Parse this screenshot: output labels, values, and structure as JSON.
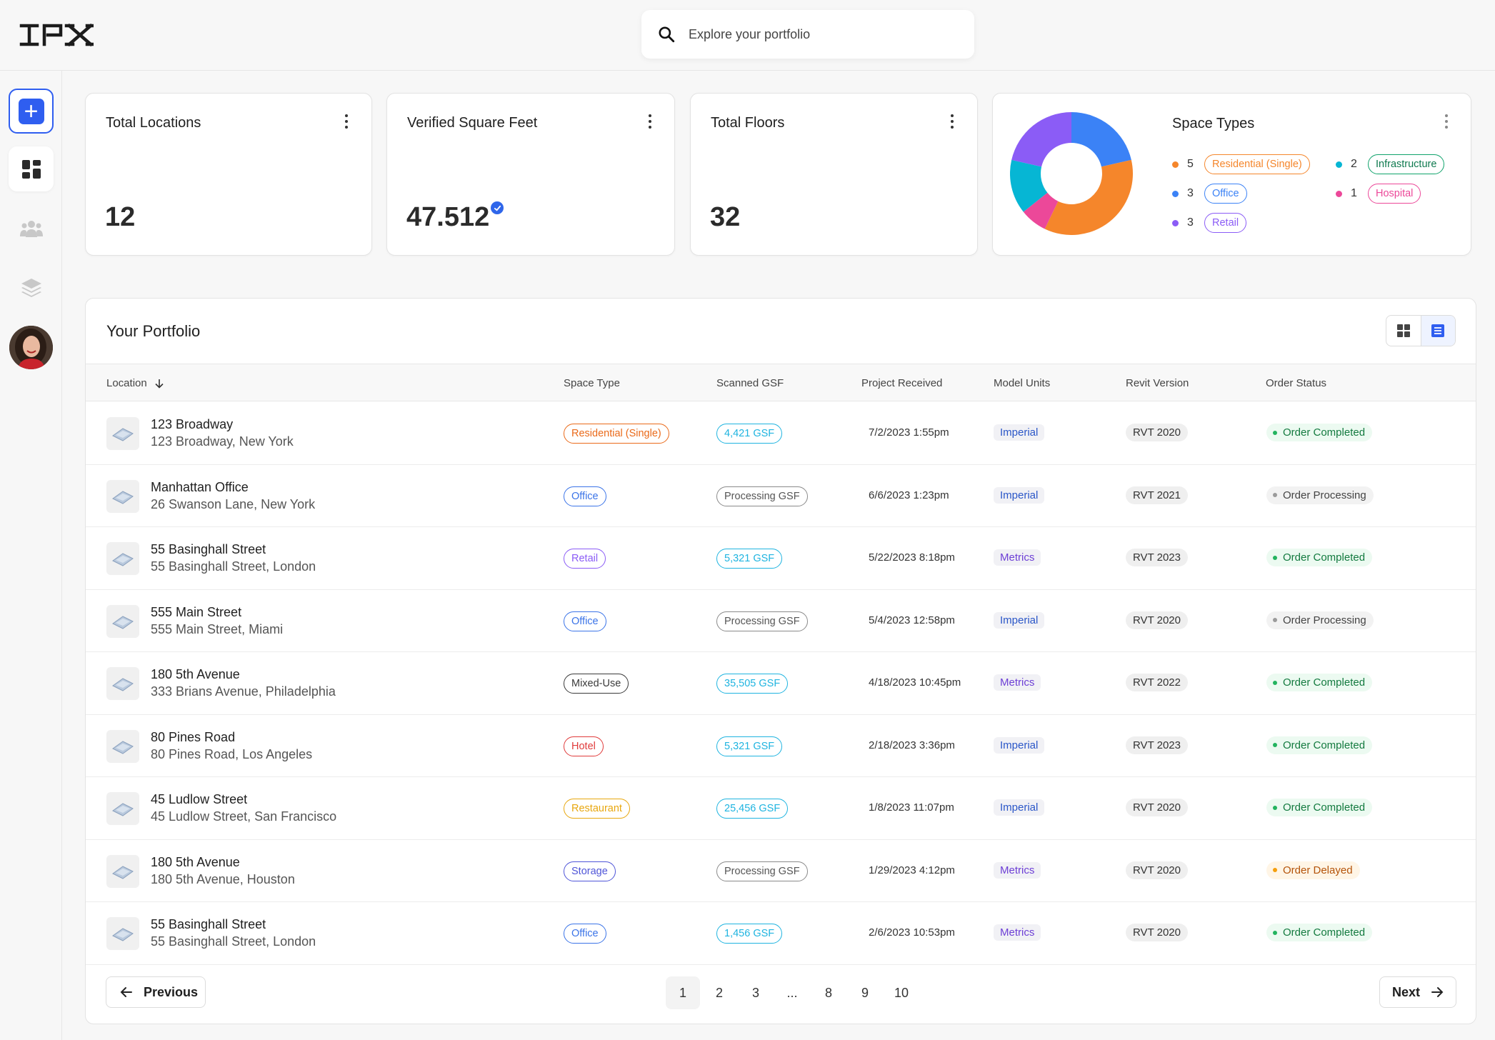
{
  "header": {
    "logo": "IPX",
    "search_placeholder": "Explore your portfolio"
  },
  "sidebar": {
    "items": [
      "add-icon",
      "dashboard-icon",
      "team-icon",
      "layers-icon"
    ],
    "active_color": "#2f5ef0"
  },
  "stats": [
    {
      "title": "Total Locations",
      "value": "12"
    },
    {
      "title": "Verified Square Feet",
      "value": "47.512"
    },
    {
      "title": "Total Floors",
      "value": "32"
    }
  ],
  "space_types": {
    "title": "Space Types",
    "items": [
      {
        "count": "5",
        "label": "Residential (Single)",
        "color": "#f5862b"
      },
      {
        "count": "3",
        "label": "Office",
        "color": "#3b82f6"
      },
      {
        "count": "3",
        "label": "Retail",
        "color": "#8b5cf6"
      },
      {
        "count": "2",
        "label": "Infrastructure",
        "color": "#06b6d4",
        "border": "#10a36b",
        "text": "#0f7a4f"
      },
      {
        "count": "1",
        "label": "Hospital",
        "color": "#ec4899"
      }
    ]
  },
  "portfolio": {
    "title": "Your Portfolio",
    "columns": [
      "Location",
      "Space Type",
      "Scanned GSF",
      "Project Received",
      "Model Units",
      "Revit Version",
      "Order Status"
    ],
    "rows": [
      {
        "name": "123 Broadway",
        "address": "123 Broadway, New York",
        "space_type": "Residential (Single)",
        "type_color": "#ea6a1a",
        "gsf": "4,421 GSF",
        "gsf_processing": false,
        "received": "7/2/2023 1:55pm",
        "units": "Imperial",
        "units_color": "#2a56c8",
        "revit": "RVT 2020",
        "status": "Order Completed",
        "status_kind": "completed"
      },
      {
        "name": "Manhattan Office",
        "address": "26 Swanson Lane, New York",
        "space_type": "Office",
        "type_color": "#3b74e8",
        "gsf": "Processing GSF",
        "gsf_processing": true,
        "received": "6/6/2023 1:23pm",
        "units": "Imperial",
        "units_color": "#2a56c8",
        "revit": "RVT 2021",
        "status": "Order Processing",
        "status_kind": "processing"
      },
      {
        "name": "55 Basinghall Street",
        "address": "55 Basinghall Street, London",
        "space_type": "Retail",
        "type_color": "#8b5cf6",
        "gsf": "5,321 GSF",
        "gsf_processing": false,
        "received": "5/22/2023 8:18pm",
        "units": "Metrics",
        "units_color": "#6d3fd6",
        "revit": "RVT 2023",
        "status": "Order Completed",
        "status_kind": "completed"
      },
      {
        "name": "555 Main Street",
        "address": "555 Main Street, Miami",
        "space_type": "Office",
        "type_color": "#3b74e8",
        "gsf": "Processing GSF",
        "gsf_processing": true,
        "received": "5/4/2023 12:58pm",
        "units": "Imperial",
        "units_color": "#2a56c8",
        "revit": "RVT 2020",
        "status": "Order Processing",
        "status_kind": "processing"
      },
      {
        "name": "180 5th Avenue",
        "address": "333 Brians Avenue, Philadelphia",
        "space_type": "Mixed-Use",
        "type_color": "#3a3a3a",
        "gsf": "35,505 GSF",
        "gsf_processing": false,
        "received": "4/18/2023 10:45pm",
        "units": "Metrics",
        "units_color": "#6d3fd6",
        "revit": "RVT 2022",
        "status": "Order Completed",
        "status_kind": "completed"
      },
      {
        "name": "80 Pines Road",
        "address": "80 Pines Road, Los Angeles",
        "space_type": "Hotel",
        "type_color": "#e03b3b",
        "gsf": "5,321 GSF",
        "gsf_processing": false,
        "received": "2/18/2023 3:36pm",
        "units": "Imperial",
        "units_color": "#2a56c8",
        "revit": "RVT 2023",
        "status": "Order Completed",
        "status_kind": "completed"
      },
      {
        "name": "45 Ludlow Street",
        "address": "45 Ludlow Street, San Francisco",
        "space_type": "Restaurant",
        "type_color": "#e8a70f",
        "gsf": "25,456 GSF",
        "gsf_processing": false,
        "received": "1/8/2023 11:07pm",
        "units": "Imperial",
        "units_color": "#2a56c8",
        "revit": "RVT 2020",
        "status": "Order Completed",
        "status_kind": "completed"
      },
      {
        "name": "180 5th Avenue",
        "address": "180 5th Avenue, Houston",
        "space_type": "Storage",
        "type_color": "#4f55d8",
        "gsf": "Processing GSF",
        "gsf_processing": true,
        "received": "1/29/2023 4:12pm",
        "units": "Metrics",
        "units_color": "#6d3fd6",
        "revit": "RVT 2020",
        "status": "Order Delayed",
        "status_kind": "delayed"
      },
      {
        "name": "55 Basinghall Street",
        "address": "55 Basinghall Street, London",
        "space_type": "Office",
        "type_color": "#3b74e8",
        "gsf": "1,456 GSF",
        "gsf_processing": false,
        "received": "2/6/2023 10:53pm",
        "units": "Metrics",
        "units_color": "#6d3fd6",
        "revit": "RVT 2020",
        "status": "Order Completed",
        "status_kind": "completed"
      }
    ]
  },
  "pagination": {
    "previous": "Previous",
    "next": "Next",
    "pages": [
      "1",
      "2",
      "3",
      "...",
      "8",
      "9",
      "10"
    ],
    "current": "1"
  },
  "colors": {
    "accent": "#2f5ef0",
    "gsf": "#1fb4e0",
    "completed_bg": "#ecfaf1",
    "completed_text": "#137a3f",
    "processing_bg": "#f2f2f2",
    "delayed_bg": "#fff5e6",
    "delayed_text": "#b45309"
  }
}
